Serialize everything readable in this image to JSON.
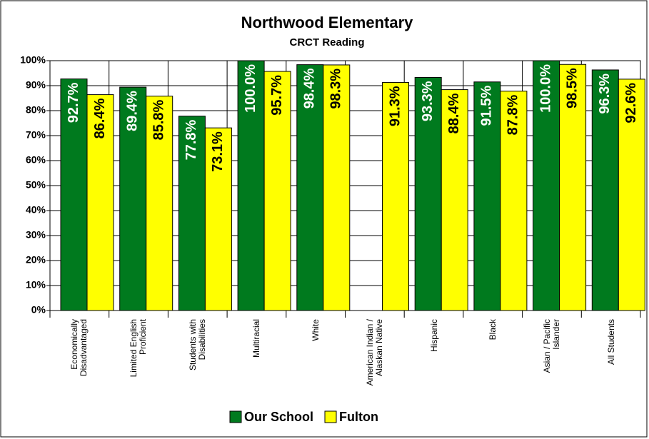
{
  "chart_data": {
    "type": "bar",
    "title": "Northwood Elementary",
    "subtitle": "CRCT Reading",
    "categories": [
      "Economically Disadvantaged",
      "Limited English Proficient",
      "Students with Disabilities",
      "Multiracial",
      "White",
      "American Indian / Alaskan Native",
      "Hispanic",
      "Black",
      "Asian / Pacific Islander",
      "All Students"
    ],
    "series": [
      {
        "name": "Our School",
        "color": "#007a1e",
        "label_color": "#ffffff",
        "values": [
          92.7,
          89.4,
          77.8,
          100.0,
          98.4,
          null,
          93.3,
          91.5,
          100.0,
          96.3
        ],
        "value_labels": [
          "92.7%",
          "89.4%",
          "77.8%",
          "100.0%",
          "98.4%",
          null,
          "93.3%",
          "91.5%",
          "100.0%",
          "96.3%"
        ]
      },
      {
        "name": "Fulton",
        "color": "#ffff00",
        "label_color": "#000000",
        "values": [
          86.4,
          85.8,
          73.1,
          95.7,
          98.3,
          91.3,
          88.4,
          87.8,
          98.5,
          92.6
        ],
        "value_labels": [
          "86.4%",
          "85.8%",
          "73.1%",
          "95.7%",
          "98.3%",
          "91.3%",
          "88.4%",
          "87.8%",
          "98.5%",
          "92.6%"
        ]
      }
    ],
    "ylim": [
      0,
      100
    ],
    "yticks": [
      {
        "value": 0,
        "label": "0%"
      },
      {
        "value": 10,
        "label": "10%"
      },
      {
        "value": 20,
        "label": "20%"
      },
      {
        "value": 30,
        "label": "30%"
      },
      {
        "value": 40,
        "label": "40%"
      },
      {
        "value": 50,
        "label": "50%"
      },
      {
        "value": 60,
        "label": "60%"
      },
      {
        "value": 70,
        "label": "70%"
      },
      {
        "value": 80,
        "label": "80%"
      },
      {
        "value": 90,
        "label": "90%"
      },
      {
        "value": 100,
        "label": "100%"
      }
    ],
    "grid": true,
    "legend": "bottom"
  }
}
